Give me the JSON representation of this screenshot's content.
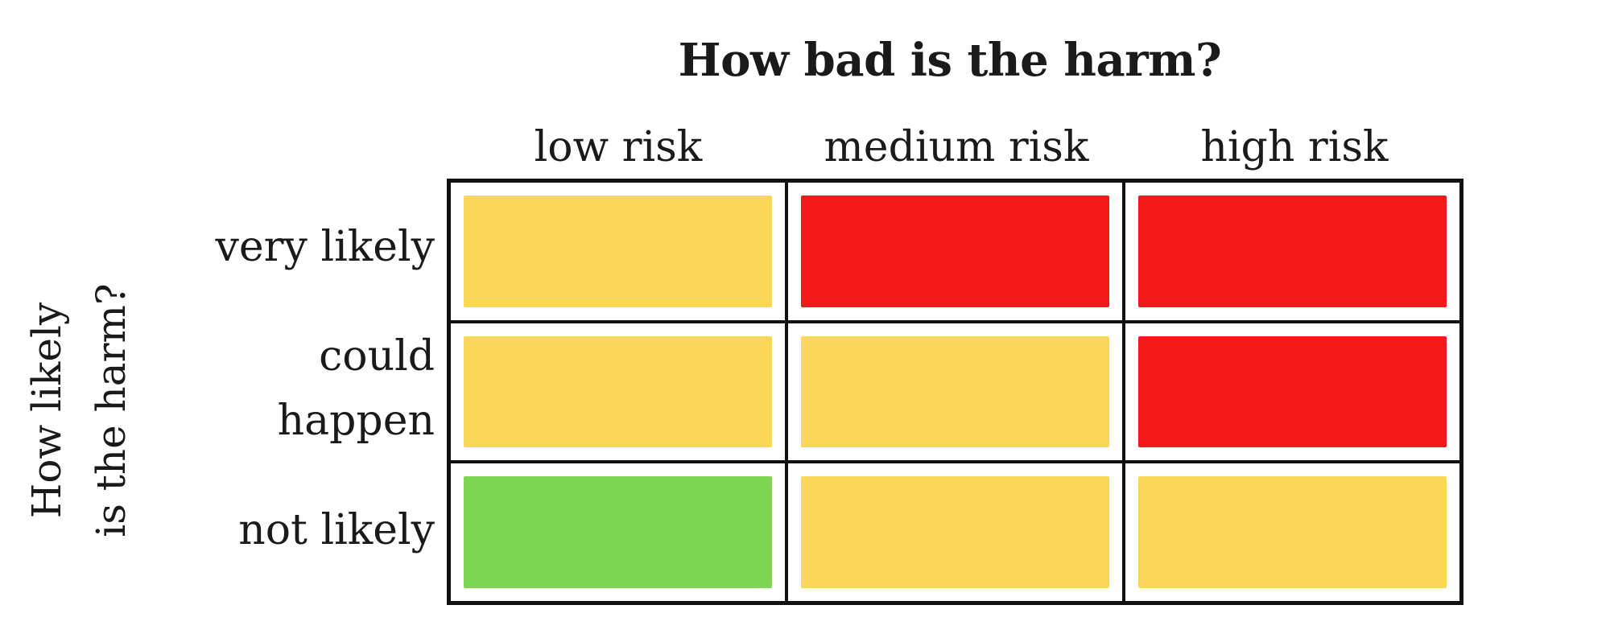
{
  "x_axis_title": "How bad is the harm?",
  "y_axis_title": "How likely\nis the harm?",
  "columns": [
    "low risk",
    "medium risk",
    "high risk"
  ],
  "rows": [
    "very likely",
    "could\nhappen",
    "not likely"
  ],
  "colors": {
    "yellow": "#FAD757",
    "red": "#F51A1A",
    "green": "#7ED552"
  },
  "matrix": [
    [
      "yellow",
      "red",
      "red"
    ],
    [
      "yellow",
      "yellow",
      "red"
    ],
    [
      "green",
      "yellow",
      "yellow"
    ]
  ]
}
